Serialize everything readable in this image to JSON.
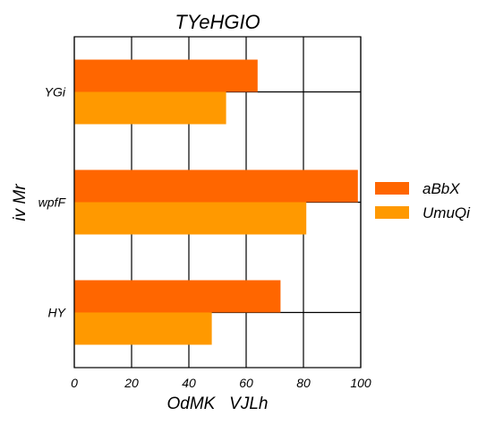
{
  "chart_data": {
    "type": "bar",
    "orientation": "horizontal",
    "title": "TYeHGIO",
    "xlabel": "OdMK   VJLh",
    "ylabel": "iv Mr",
    "categories": [
      "YGi",
      "wpfF",
      "HY"
    ],
    "series": [
      {
        "name": "aBbX",
        "color": "#ff6600",
        "values": [
          64,
          99,
          72
        ]
      },
      {
        "name": "UmuQi",
        "color": "#ff9900",
        "values": [
          53,
          81,
          48
        ]
      }
    ],
    "xlim": [
      0,
      100
    ],
    "xticks": [
      0,
      20,
      40,
      60,
      80,
      100
    ],
    "xtick_labels": [
      "0",
      "20",
      "40",
      "60",
      "80",
      "100"
    ],
    "grid": true,
    "legend_position": "right"
  }
}
